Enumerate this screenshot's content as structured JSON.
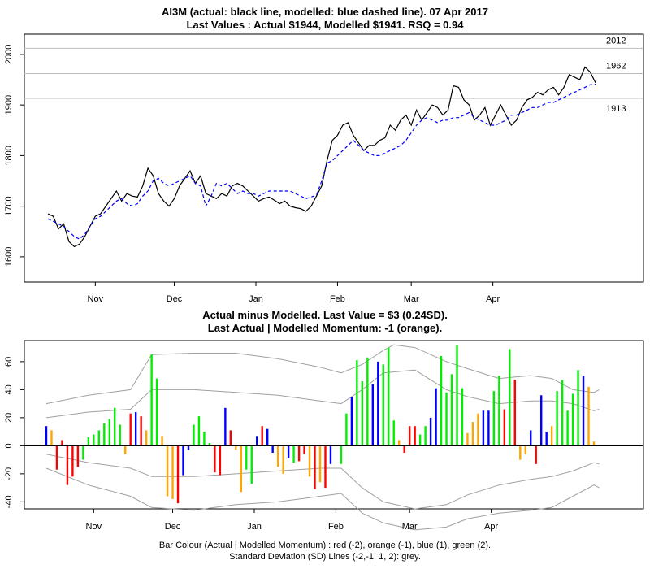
{
  "top": {
    "title_line1": "AI3M (actual: black line, modelled: blue dashed line). 07 Apr 2017",
    "title_line2": "Last Values : Actual $1944, Modelled $1941.  RSQ = 0.94"
  },
  "bottom": {
    "title_line1": "Actual minus Modelled. Last Value = $3 (0.24SD).",
    "title_line2": "Last Actual | Modelled Momentum: -1 (orange)."
  },
  "footer": {
    "line1": "Bar Colour (Actual | Modelled Momentum) : red (-2), orange (-1), blue (1), green (2).",
    "line2": "Standard Deviation (SD) Lines (-2,-1, 1, 2): grey."
  },
  "colors": {
    "actual": "#000000",
    "modelled": "#0000ff",
    "red": "#ff0000",
    "orange": "#ffa500",
    "blue": "#0000ff",
    "green": "#00ee00",
    "grey": "#a0a0a0"
  },
  "chart_data": [
    {
      "type": "line",
      "x_start": "2016-10-14",
      "step_days": 2,
      "month_ticks": [
        "Nov",
        "Dec",
        "Jan",
        "Feb",
        "Mar",
        "Apr"
      ],
      "ylim": [
        1550,
        2040
      ],
      "yticks": [
        1600,
        1700,
        1800,
        1900,
        2000
      ],
      "hlines": [
        {
          "value": 2012,
          "label": "2012"
        },
        {
          "value": 1962,
          "label": "1962"
        },
        {
          "value": 1913,
          "label": "1913"
        }
      ],
      "series": [
        {
          "name": "actual",
          "style": "solid",
          "values": [
            1685,
            1680,
            1655,
            1665,
            1630,
            1620,
            1625,
            1640,
            1660,
            1680,
            1685,
            1700,
            1715,
            1730,
            1710,
            1725,
            1720,
            1718,
            1740,
            1775,
            1760,
            1725,
            1710,
            1700,
            1715,
            1740,
            1755,
            1770,
            1745,
            1760,
            1725,
            1720,
            1715,
            1725,
            1720,
            1740,
            1745,
            1740,
            1730,
            1720,
            1710,
            1715,
            1718,
            1712,
            1705,
            1710,
            1700,
            1697,
            1695,
            1690,
            1700,
            1720,
            1740,
            1790,
            1830,
            1840,
            1860,
            1865,
            1840,
            1825,
            1810,
            1820,
            1820,
            1830,
            1835,
            1860,
            1850,
            1870,
            1880,
            1860,
            1890,
            1870,
            1885,
            1900,
            1895,
            1880,
            1890,
            1938,
            1935,
            1910,
            1900,
            1870,
            1880,
            1895,
            1860,
            1880,
            1900,
            1880,
            1860,
            1870,
            1895,
            1910,
            1915,
            1925,
            1920,
            1930,
            1935,
            1920,
            1935,
            1960,
            1955,
            1950,
            1975,
            1965,
            1944
          ]
        },
        {
          "name": "modelled",
          "style": "dashed",
          "values": [
            1675,
            1670,
            1665,
            1660,
            1650,
            1640,
            1635,
            1645,
            1660,
            1675,
            1680,
            1690,
            1700,
            1710,
            1715,
            1705,
            1700,
            1705,
            1720,
            1730,
            1750,
            1755,
            1745,
            1740,
            1745,
            1750,
            1755,
            1760,
            1745,
            1740,
            1700,
            1720,
            1745,
            1740,
            1745,
            1735,
            1725,
            1730,
            1725,
            1725,
            1720,
            1725,
            1730,
            1730,
            1730,
            1730,
            1730,
            1725,
            1720,
            1715,
            1718,
            1722,
            1750,
            1785,
            1790,
            1800,
            1810,
            1820,
            1830,
            1820,
            1810,
            1805,
            1800,
            1800,
            1805,
            1810,
            1815,
            1820,
            1830,
            1845,
            1860,
            1870,
            1875,
            1870,
            1865,
            1870,
            1870,
            1875,
            1875,
            1880,
            1885,
            1875,
            1870,
            1865,
            1860,
            1860,
            1865,
            1870,
            1880,
            1880,
            1885,
            1890,
            1895,
            1895,
            1900,
            1905,
            1905,
            1910,
            1915,
            1920,
            1925,
            1930,
            1935,
            1940,
            1941
          ]
        }
      ]
    },
    {
      "type": "bar",
      "x_start": "2016-10-14",
      "step_days": 2,
      "month_ticks": [
        "Nov",
        "Dec",
        "Jan",
        "Feb",
        "Mar",
        "Apr"
      ],
      "ylim": [
        -45,
        75
      ],
      "yticks": [
        -40,
        -20,
        0,
        20,
        40,
        60
      ],
      "bars": [
        {
          "v": 14,
          "c": "blue"
        },
        {
          "v": 11,
          "c": "orange"
        },
        {
          "v": -17,
          "c": "red"
        },
        {
          "v": 4,
          "c": "red"
        },
        {
          "v": -28,
          "c": "red"
        },
        {
          "v": -22,
          "c": "red"
        },
        {
          "v": -15,
          "c": "red"
        },
        {
          "v": -10,
          "c": "green"
        },
        {
          "v": 6,
          "c": "green"
        },
        {
          "v": 8,
          "c": "green"
        },
        {
          "v": 11,
          "c": "green"
        },
        {
          "v": 16,
          "c": "green"
        },
        {
          "v": 19,
          "c": "green"
        },
        {
          "v": 27,
          "c": "green"
        },
        {
          "v": 15,
          "c": "green"
        },
        {
          "v": -6,
          "c": "orange"
        },
        {
          "v": 23,
          "c": "red"
        },
        {
          "v": 24,
          "c": "blue"
        },
        {
          "v": 21,
          "c": "red"
        },
        {
          "v": 11,
          "c": "orange"
        },
        {
          "v": 65,
          "c": "green"
        },
        {
          "v": 48,
          "c": "green"
        },
        {
          "v": 7,
          "c": "orange"
        },
        {
          "v": -36,
          "c": "orange"
        },
        {
          "v": -38,
          "c": "orange"
        },
        {
          "v": -41,
          "c": "red"
        },
        {
          "v": -21,
          "c": "blue"
        },
        {
          "v": -3,
          "c": "blue"
        },
        {
          "v": 15,
          "c": "green"
        },
        {
          "v": 21,
          "c": "green"
        },
        {
          "v": 10,
          "c": "green"
        },
        {
          "v": 2,
          "c": "green"
        },
        {
          "v": -19,
          "c": "red"
        },
        {
          "v": -21,
          "c": "red"
        },
        {
          "v": 27,
          "c": "blue"
        },
        {
          "v": 11,
          "c": "red"
        },
        {
          "v": -3,
          "c": "orange"
        },
        {
          "v": -33,
          "c": "orange"
        },
        {
          "v": -17,
          "c": "green"
        },
        {
          "v": -27,
          "c": "green"
        },
        {
          "v": 7,
          "c": "blue"
        },
        {
          "v": 14,
          "c": "red"
        },
        {
          "v": 12,
          "c": "blue"
        },
        {
          "v": -5,
          "c": "blue"
        },
        {
          "v": -15,
          "c": "orange"
        },
        {
          "v": -20,
          "c": "orange"
        },
        {
          "v": -9,
          "c": "blue"
        },
        {
          "v": -12,
          "c": "green"
        },
        {
          "v": -11,
          "c": "red"
        },
        {
          "v": -6,
          "c": "red"
        },
        {
          "v": -22,
          "c": "orange"
        },
        {
          "v": -31,
          "c": "red"
        },
        {
          "v": -26,
          "c": "orange"
        },
        {
          "v": -30,
          "c": "red"
        },
        {
          "v": -13,
          "c": "blue"
        },
        {
          "v": 0,
          "c": "grey"
        },
        {
          "v": -13,
          "c": "green"
        },
        {
          "v": 23,
          "c": "green"
        },
        {
          "v": 35,
          "c": "blue"
        },
        {
          "v": 61,
          "c": "green"
        },
        {
          "v": 46,
          "c": "green"
        },
        {
          "v": 63,
          "c": "green"
        },
        {
          "v": 44,
          "c": "blue"
        },
        {
          "v": 60,
          "c": "blue"
        },
        {
          "v": 58,
          "c": "green"
        },
        {
          "v": 70,
          "c": "green"
        },
        {
          "v": 18,
          "c": "green"
        },
        {
          "v": 4,
          "c": "orange"
        },
        {
          "v": -5,
          "c": "red"
        },
        {
          "v": 14,
          "c": "red"
        },
        {
          "v": 14,
          "c": "red"
        },
        {
          "v": 8,
          "c": "green"
        },
        {
          "v": 14,
          "c": "green"
        },
        {
          "v": 20,
          "c": "blue"
        },
        {
          "v": 41,
          "c": "blue"
        },
        {
          "v": 64,
          "c": "green"
        },
        {
          "v": 38,
          "c": "green"
        },
        {
          "v": 51,
          "c": "green"
        },
        {
          "v": 72,
          "c": "green"
        },
        {
          "v": 41,
          "c": "green"
        },
        {
          "v": 9,
          "c": "orange"
        },
        {
          "v": 17,
          "c": "orange"
        },
        {
          "v": 23,
          "c": "orange"
        },
        {
          "v": 25,
          "c": "blue"
        },
        {
          "v": 25,
          "c": "blue"
        },
        {
          "v": 39,
          "c": "green"
        },
        {
          "v": 50,
          "c": "green"
        },
        {
          "v": 26,
          "c": "red"
        },
        {
          "v": 69,
          "c": "green"
        },
        {
          "v": 47,
          "c": "red"
        },
        {
          "v": -10,
          "c": "orange"
        },
        {
          "v": -6,
          "c": "orange"
        },
        {
          "v": 11,
          "c": "blue"
        },
        {
          "v": -13,
          "c": "red"
        },
        {
          "v": 36,
          "c": "blue"
        },
        {
          "v": 10,
          "c": "blue"
        },
        {
          "v": 14,
          "c": "orange"
        },
        {
          "v": 39,
          "c": "green"
        },
        {
          "v": 47,
          "c": "green"
        },
        {
          "v": 25,
          "c": "green"
        },
        {
          "v": 37,
          "c": "green"
        },
        {
          "v": 54,
          "c": "green"
        },
        {
          "v": 50,
          "c": "blue"
        },
        {
          "v": 42,
          "c": "orange"
        },
        {
          "v": 3,
          "c": "orange"
        }
      ],
      "sd_lines": {
        "upper2": [
          [
            0,
            30
          ],
          [
            8,
            36
          ],
          [
            16,
            40
          ],
          [
            20,
            65
          ],
          [
            28,
            66
          ],
          [
            36,
            66
          ],
          [
            44,
            62
          ],
          [
            52,
            56
          ],
          [
            56,
            52
          ],
          [
            60,
            58
          ],
          [
            64,
            68
          ],
          [
            66,
            72
          ],
          [
            70,
            70
          ],
          [
            76,
            60
          ],
          [
            80,
            55
          ],
          [
            86,
            48
          ],
          [
            92,
            50
          ],
          [
            96,
            48
          ],
          [
            100,
            40
          ],
          [
            104,
            38
          ],
          [
            105,
            40
          ]
        ],
        "upper1": [
          [
            0,
            20
          ],
          [
            8,
            24
          ],
          [
            16,
            26
          ],
          [
            20,
            40
          ],
          [
            28,
            40
          ],
          [
            36,
            38
          ],
          [
            44,
            36
          ],
          [
            52,
            32
          ],
          [
            56,
            30
          ],
          [
            60,
            40
          ],
          [
            64,
            52
          ],
          [
            70,
            54
          ],
          [
            76,
            40
          ],
          [
            80,
            35
          ],
          [
            86,
            30
          ],
          [
            92,
            32
          ],
          [
            96,
            32
          ],
          [
            100,
            30
          ],
          [
            104,
            25
          ],
          [
            105,
            26
          ]
        ],
        "lower1": [
          [
            0,
            -6
          ],
          [
            8,
            -12
          ],
          [
            16,
            -16
          ],
          [
            20,
            -22
          ],
          [
            28,
            -22
          ],
          [
            36,
            -20
          ],
          [
            44,
            -18
          ],
          [
            52,
            -16
          ],
          [
            56,
            -16
          ],
          [
            60,
            -30
          ],
          [
            64,
            -40
          ],
          [
            70,
            -45
          ],
          [
            76,
            -42
          ],
          [
            80,
            -35
          ],
          [
            86,
            -28
          ],
          [
            92,
            -24
          ],
          [
            96,
            -22
          ],
          [
            100,
            -18
          ],
          [
            104,
            -12
          ],
          [
            105,
            -13
          ]
        ],
        "lower2": [
          [
            0,
            -16
          ],
          [
            8,
            -28
          ],
          [
            16,
            -36
          ],
          [
            20,
            -44
          ],
          [
            28,
            -46
          ],
          [
            36,
            -42
          ],
          [
            44,
            -40
          ],
          [
            52,
            -36
          ],
          [
            56,
            -34
          ],
          [
            60,
            -48
          ],
          [
            64,
            -55
          ],
          [
            70,
            -60
          ],
          [
            76,
            -58
          ],
          [
            80,
            -52
          ],
          [
            86,
            -48
          ],
          [
            92,
            -46
          ],
          [
            96,
            -44
          ],
          [
            100,
            -36
          ],
          [
            104,
            -28
          ],
          [
            105,
            -30
          ]
        ]
      }
    }
  ]
}
